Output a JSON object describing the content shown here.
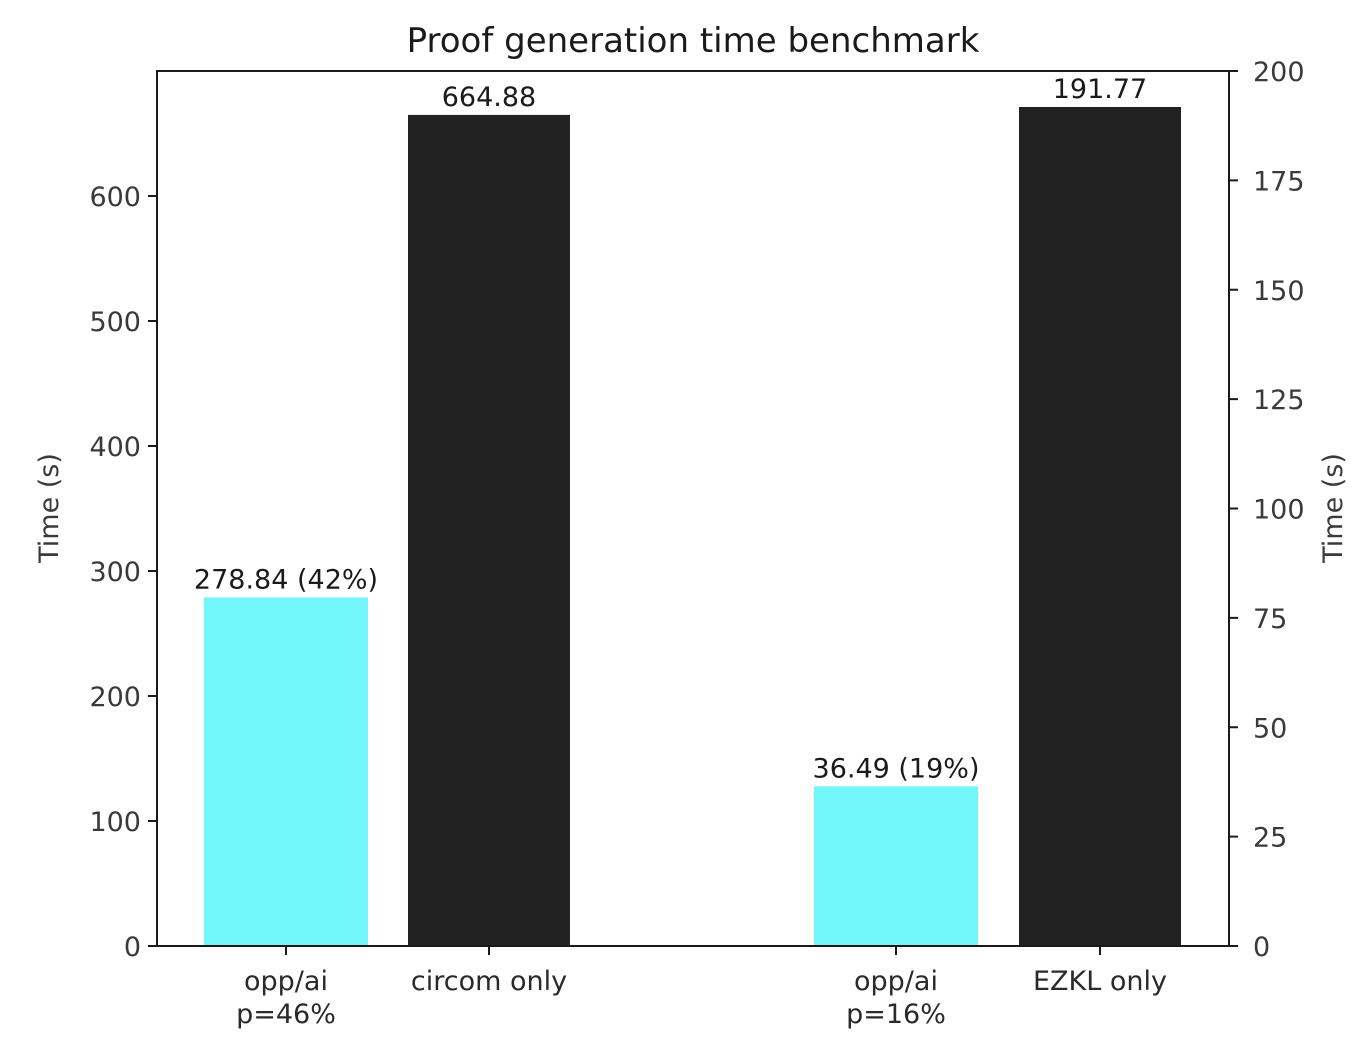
{
  "chart_data": {
    "type": "bar",
    "title": "Proof generation time benchmark",
    "ylabel_left": "Time (s)",
    "ylabel_right": "Time (s)",
    "ylim_left": [
      0,
      700
    ],
    "ylim_right": [
      0,
      200
    ],
    "yticks_left": [
      0,
      100,
      200,
      300,
      400,
      500,
      600
    ],
    "yticks_right": [
      0,
      25,
      50,
      75,
      100,
      125,
      150,
      175,
      200
    ],
    "groups": [
      {
        "axis": "left",
        "bars": [
          {
            "label_lines": [
              "opp/ai",
              "p=46%"
            ],
            "value": 278.84,
            "data_label": "278.84 (42%)",
            "color": "#72f6fa"
          },
          {
            "label_lines": [
              "circom only"
            ],
            "value": 664.88,
            "data_label": "664.88",
            "color": "#222222"
          }
        ]
      },
      {
        "axis": "right",
        "bars": [
          {
            "label_lines": [
              "opp/ai",
              "p=16%"
            ],
            "value": 36.49,
            "data_label": "36.49 (19%)",
            "color": "#72f6fa"
          },
          {
            "label_lines": [
              "EZKL only"
            ],
            "value": 191.77,
            "data_label": "191.77",
            "color": "#222222"
          }
        ]
      }
    ]
  }
}
